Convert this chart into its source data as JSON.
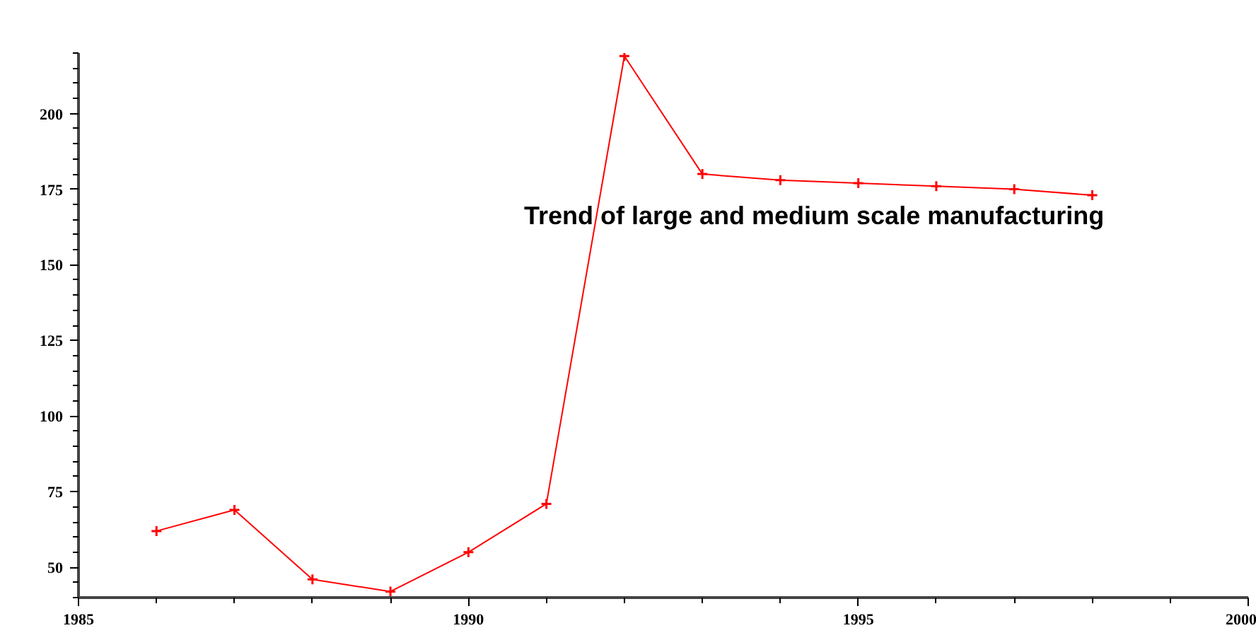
{
  "chart_data": {
    "type": "line",
    "x": [
      1986,
      1987,
      1988,
      1989,
      1990,
      1991,
      1992,
      1993,
      1994,
      1995,
      1996,
      1997,
      1998
    ],
    "series": [
      {
        "color": "#ff0000",
        "values": [
          62,
          69,
          46,
          42,
          55,
          71,
          219,
          180,
          178,
          177,
          176,
          175,
          173
        ]
      }
    ],
    "xlim": [
      1985,
      2000
    ],
    "ylim": [
      40,
      220
    ],
    "xticks": [
      1985,
      1990,
      1995,
      2000
    ],
    "yticks": [
      50,
      75,
      100,
      125,
      150,
      175,
      200
    ],
    "annotations": [
      "Trend of large and medium scale manufacturing"
    ],
    "marker": "cross",
    "line_style": "solid"
  }
}
